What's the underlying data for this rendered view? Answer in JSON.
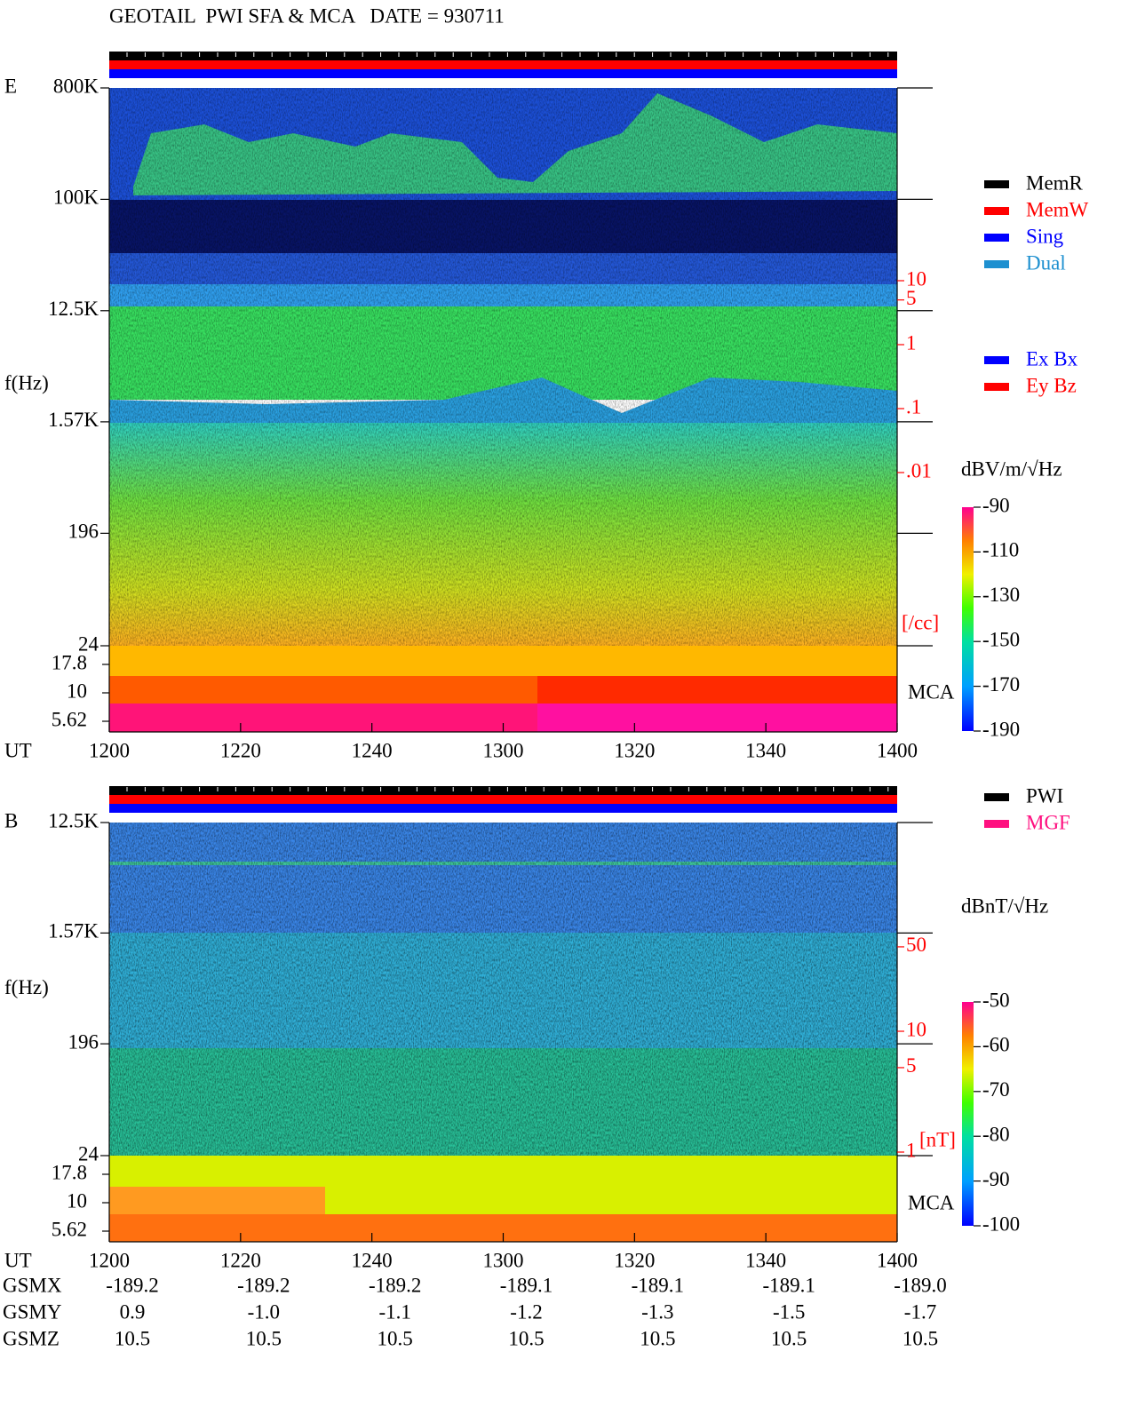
{
  "title": "GEOTAIL  PWI SFA & MCA   DATE = 930711",
  "chart_data": [
    {
      "type": "spectrogram",
      "panel_label": "E",
      "ylabel": "f(Hz)",
      "yscale": "log",
      "ylim": [
        24,
        800000
      ],
      "yticks": [
        {
          "value": 800000,
          "label": "800K"
        },
        {
          "value": 100000,
          "label": "100K"
        },
        {
          "value": 12500,
          "label": "12.5K"
        },
        {
          "value": 1570,
          "label": "1.57K"
        },
        196,
        24
      ],
      "mca_ticks": [
        17.8,
        10,
        5.62
      ],
      "mca_label": "MCA",
      "xlabel": "UT",
      "xticks": [
        "1200",
        "1220",
        "1240",
        "1300",
        "1320",
        "1340",
        "1400"
      ],
      "status_legend": [
        {
          "name": "MemR",
          "color": "#000000"
        },
        {
          "name": "MemW",
          "color": "#ff0000"
        },
        {
          "name": "Sing",
          "color": "#0000ff"
        },
        {
          "name": "Dual",
          "color": "#1e90d0"
        }
      ],
      "component_legend": [
        {
          "name": "Ex Bx",
          "color": "#0000ff"
        },
        {
          "name": "Ey Bz",
          "color": "#ff0000"
        }
      ],
      "side_scale": {
        "ticks": [
          10,
          5,
          1,
          {
            "value": 0.1,
            "label": ".1"
          },
          {
            "value": 0.01,
            "label": ".01"
          }
        ],
        "unit": "[/cc]",
        "color": "#ff0000"
      },
      "colorbar": {
        "unit": "dBV/m/√Hz",
        "lim": [
          -190,
          -90
        ],
        "ticks": [
          -90,
          -110,
          -130,
          -150,
          -170,
          -190
        ]
      }
    },
    {
      "type": "spectrogram",
      "panel_label": "B",
      "ylabel": "f(Hz)",
      "yscale": "log",
      "ylim": [
        24,
        12500
      ],
      "yticks": [
        {
          "value": 12500,
          "label": "12.5K"
        },
        {
          "value": 1570,
          "label": "1.57K"
        },
        196,
        24
      ],
      "mca_ticks": [
        17.8,
        10,
        5.62
      ],
      "mca_label": "MCA",
      "xlabel": "UT",
      "xticks": [
        "1200",
        "1220",
        "1240",
        "1300",
        "1320",
        "1340",
        "1400"
      ],
      "status_legend": [
        {
          "name": "PWI",
          "color": "#000000"
        },
        {
          "name": "MGF",
          "color": "#ff1080"
        }
      ],
      "side_scale": {
        "ticks": [
          50,
          10,
          5,
          1
        ],
        "unit": "[nT]",
        "color": "#ff0000"
      },
      "colorbar": {
        "unit": "dBnT/√Hz",
        "lim": [
          -100,
          -50
        ],
        "ticks": [
          -50,
          -60,
          -70,
          -80,
          -90,
          -100
        ]
      }
    }
  ],
  "orbit": {
    "rows": [
      {
        "label": "GSMX",
        "values": [
          "-189.2",
          "-189.2",
          "-189.2",
          "-189.1",
          "-189.1",
          "-189.1",
          "-189.0"
        ]
      },
      {
        "label": "GSMY",
        "values": [
          "0.9",
          "-1.0",
          "-1.1",
          "-1.2",
          "-1.3",
          "-1.5",
          "-1.7"
        ]
      },
      {
        "label": "GSMZ",
        "values": [
          "10.5",
          "10.5",
          "10.5",
          "10.5",
          "10.5",
          "10.5",
          "10.5"
        ]
      }
    ]
  }
}
